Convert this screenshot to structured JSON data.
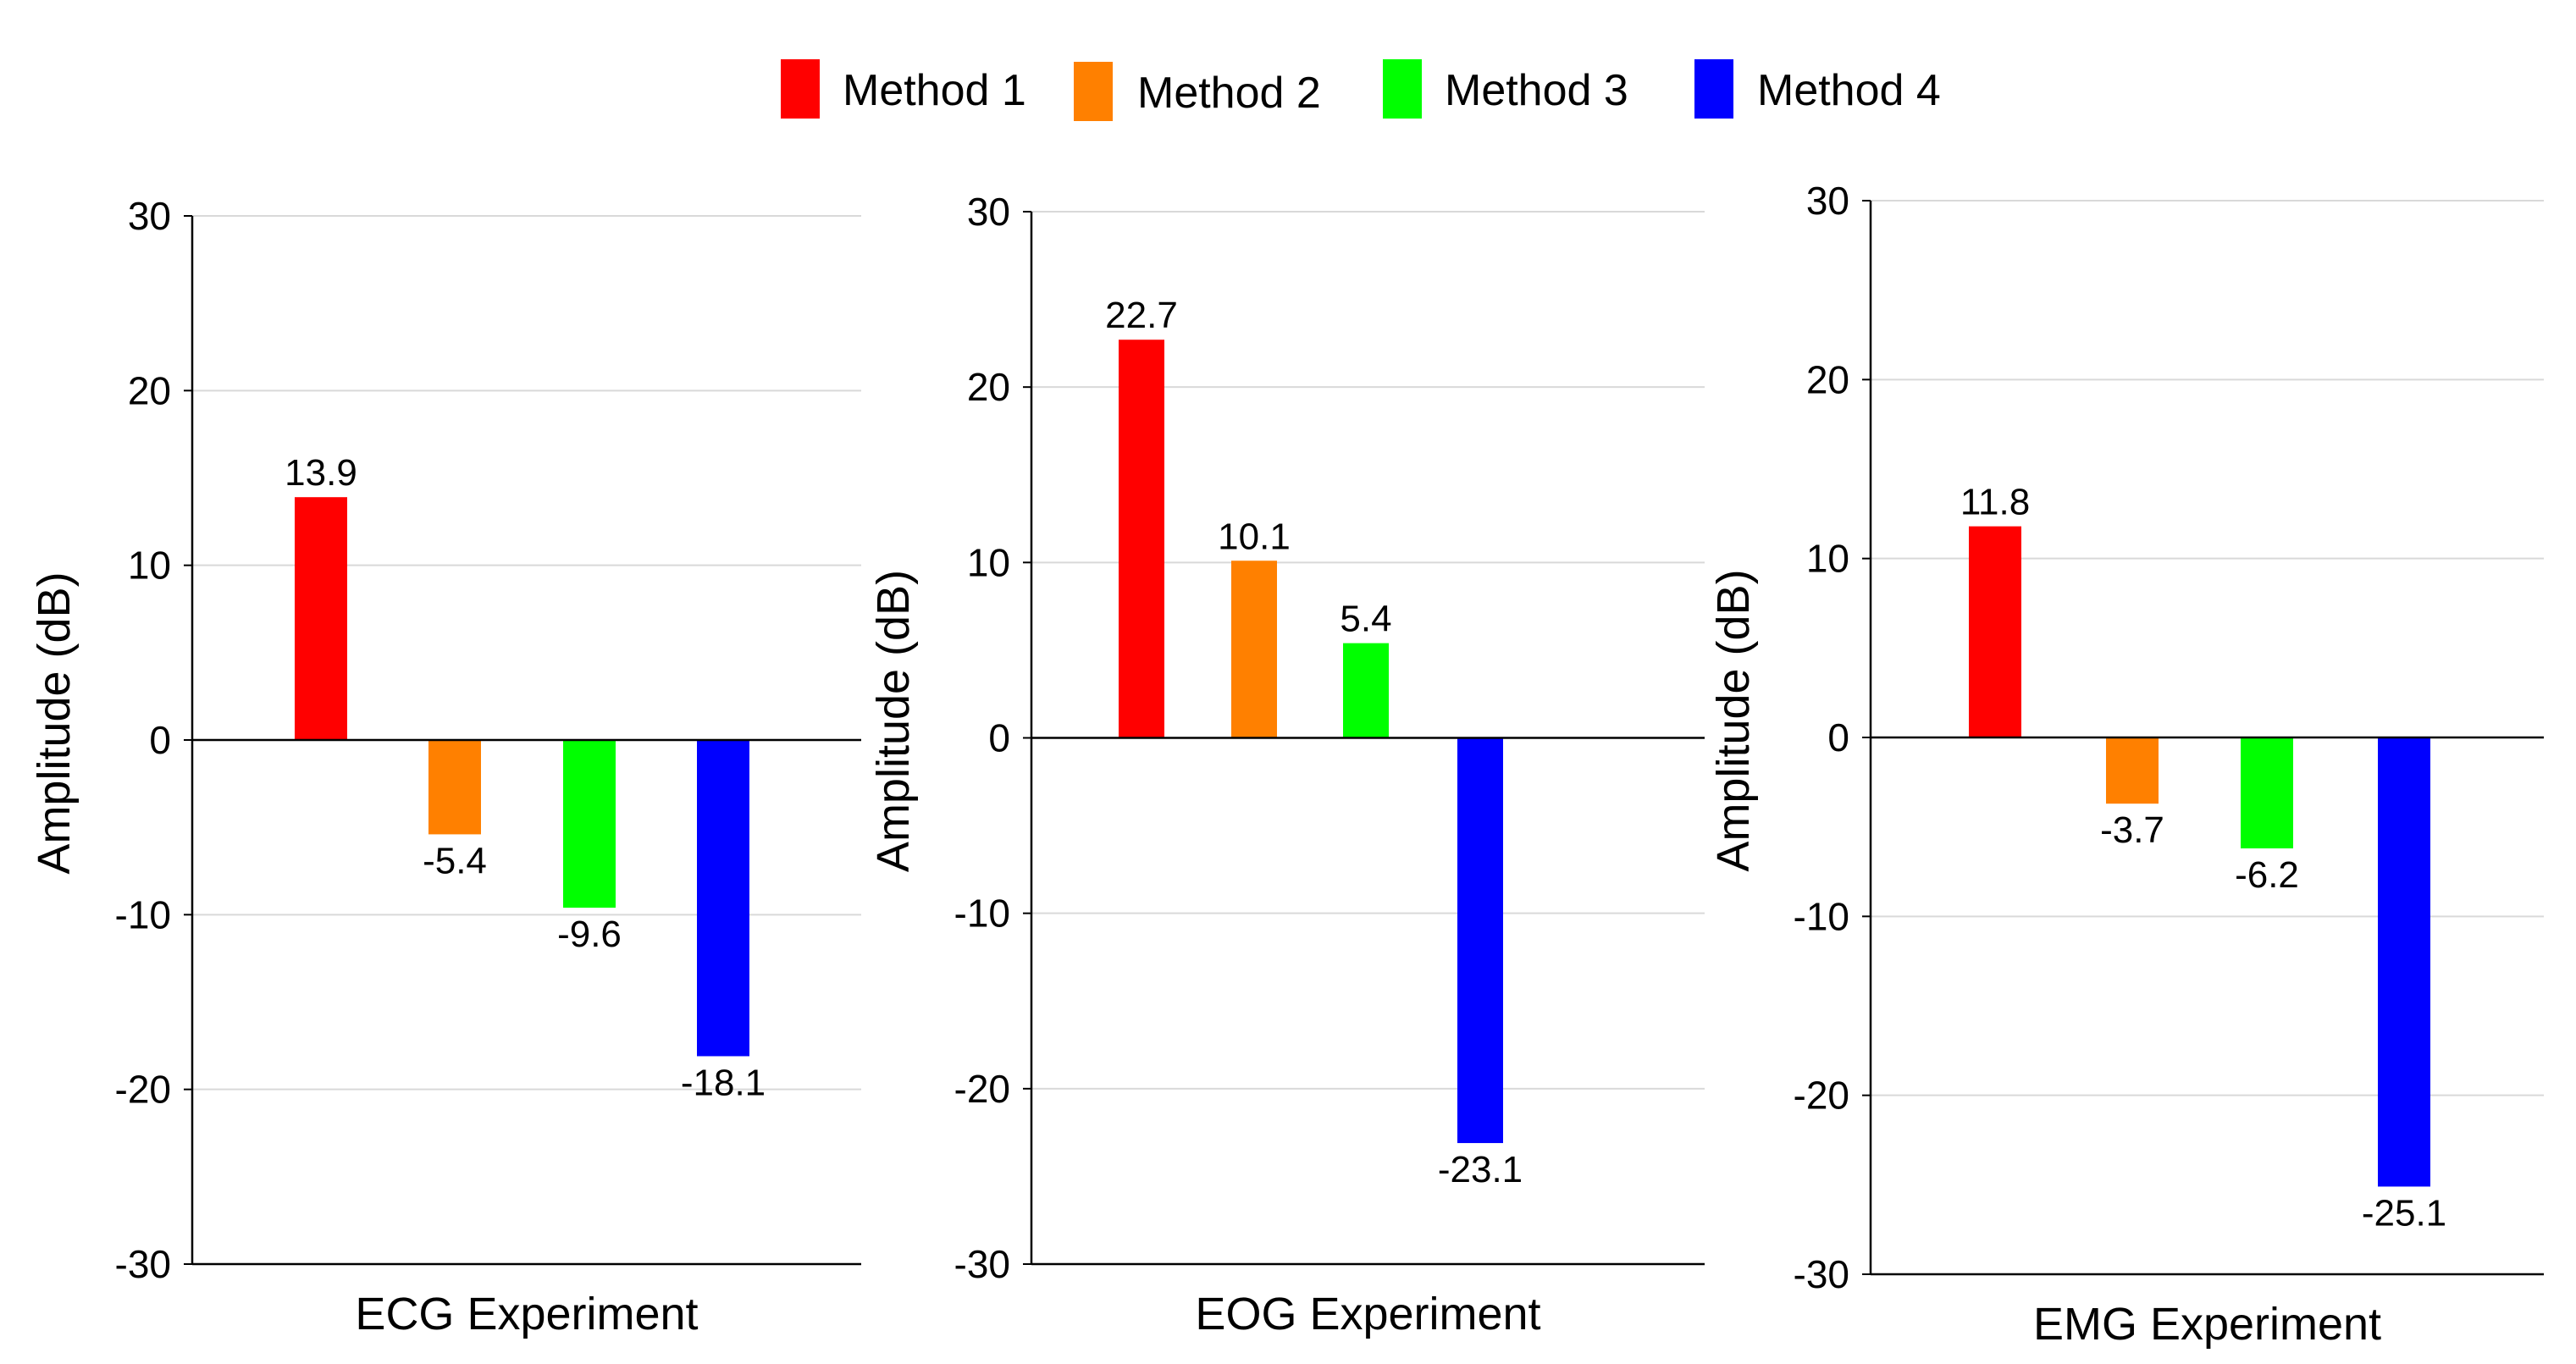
{
  "legend": [
    {
      "name": "Method 1",
      "color": "#ff0000"
    },
    {
      "name": "Method 2",
      "color": "#ff8000"
    },
    {
      "name": "Method 3",
      "color": "#00ff00"
    },
    {
      "name": "Method 4",
      "color": "#0000ff"
    }
  ],
  "chart_data": [
    {
      "type": "bar",
      "categories": [
        "Method 1",
        "Method 2",
        "Method 3",
        "Method 4"
      ],
      "values": [
        13.9,
        -5.4,
        -9.6,
        -18.1
      ],
      "data_labels": [
        "13.9",
        "-5.4",
        "-9.6",
        "-18.1"
      ],
      "xlabel": "ECG Experiment",
      "ylabel": "Amplitude (dB)",
      "ylim": [
        -30,
        30
      ],
      "yticks": [
        "30",
        "20",
        "10",
        "0",
        "-10",
        "-20",
        "-30"
      ],
      "grid": true
    },
    {
      "type": "bar",
      "categories": [
        "Method 1",
        "Method 2",
        "Method 3",
        "Method 4"
      ],
      "values": [
        22.7,
        10.1,
        5.4,
        -23.1
      ],
      "data_labels": [
        "22.7",
        "10.1",
        "5.4",
        "-23.1"
      ],
      "xlabel": "EOG Experiment",
      "ylabel": "Amplitude (dB)",
      "ylim": [
        -30,
        30
      ],
      "yticks": [
        "30",
        "20",
        "10",
        "0",
        "-10",
        "-20",
        "-30"
      ],
      "grid": true
    },
    {
      "type": "bar",
      "categories": [
        "Method 1",
        "Method 2",
        "Method 3",
        "Method 4"
      ],
      "values": [
        11.8,
        -3.7,
        -6.2,
        -25.1
      ],
      "data_labels": [
        "11.8",
        "-3.7",
        "-6.2",
        "-25.1"
      ],
      "xlabel": "EMG Experiment",
      "ylabel": "Amplitude (dB)",
      "ylim": [
        -30,
        30
      ],
      "yticks": [
        "30",
        "20",
        "10",
        "0",
        "-10",
        "-20",
        "-30"
      ],
      "grid": true
    }
  ]
}
